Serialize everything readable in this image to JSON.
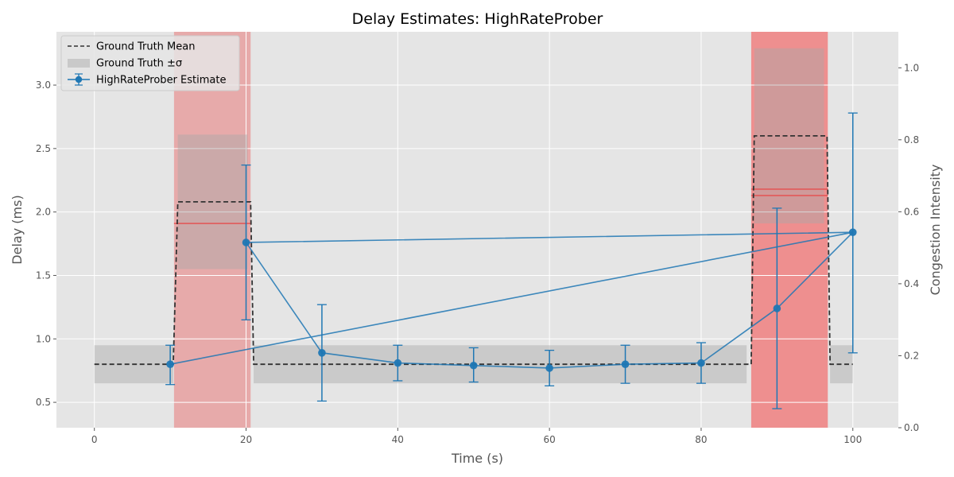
{
  "chart_data": {
    "type": "line",
    "title": "Delay Estimates: HighRateProber",
    "xlabel": "Time (s)",
    "ylabel": "Delay (ms)",
    "y2label": "Congestion Intensity",
    "xlim": [
      -5,
      106
    ],
    "ylim": [
      0.3,
      3.42
    ],
    "y2lim": [
      0.0,
      1.1
    ],
    "xticks": [
      0,
      20,
      40,
      60,
      80,
      100
    ],
    "yticks": [
      0.5,
      1.0,
      1.5,
      2.0,
      2.5,
      3.0
    ],
    "y2ticks": [
      0.0,
      0.2,
      0.4,
      0.6,
      0.8,
      1.0
    ],
    "grid": true,
    "legend_position": "top-left",
    "legend": [
      "Ground Truth Mean",
      "Ground Truth ±σ",
      "HighRateProber Estimate"
    ],
    "ground_truth_mean": {
      "x": [
        0,
        10.4,
        11,
        20,
        20.6,
        21,
        86,
        86.6,
        87,
        96,
        96.6,
        97,
        100
      ],
      "y": [
        0.8,
        0.8,
        2.08,
        2.08,
        2.08,
        0.8,
        0.8,
        0.8,
        2.6,
        2.6,
        2.6,
        0.8,
        0.8
      ]
    },
    "ground_truth_band": [
      {
        "x0": 0,
        "x1": 10.4,
        "lower": 0.65,
        "upper": 0.95
      },
      {
        "x0": 11,
        "x1": 20.2,
        "lower": 1.55,
        "upper": 2.61
      },
      {
        "x0": 21,
        "x1": 86,
        "lower": 0.65,
        "upper": 0.95
      },
      {
        "x0": 87,
        "x1": 96.2,
        "lower": 1.91,
        "upper": 3.29
      },
      {
        "x0": 97,
        "x1": 100,
        "lower": 0.65,
        "upper": 0.95
      }
    ],
    "congestion_regions": [
      {
        "x0": 10.5,
        "x1": 20.6,
        "intensity": 0.57,
        "color": "#e8a0a0"
      },
      {
        "x0": 86.6,
        "x1": 96.7,
        "intensity": 0.66,
        "color": "#f08080"
      }
    ],
    "congestion_lines": [
      {
        "x0": 10.5,
        "x1": 20.6,
        "y": 1.91
      },
      {
        "x0": 86.6,
        "x1": 96.7,
        "y": 2.18
      },
      {
        "x0": 86.6,
        "x1": 96.7,
        "y": 2.13
      }
    ],
    "series": [
      {
        "name": "HighRateProber Estimate",
        "color": "#1f77b4",
        "x": [
          10,
          20,
          30,
          40,
          50,
          60,
          70,
          80,
          90,
          100
        ],
        "y": [
          0.8,
          1.76,
          0.89,
          0.81,
          0.79,
          0.77,
          0.8,
          0.81,
          1.24,
          1.84
        ],
        "err_low": [
          0.64,
          1.15,
          0.51,
          0.67,
          0.66,
          0.63,
          0.65,
          0.65,
          0.45,
          0.89
        ],
        "err_high": [
          0.95,
          2.37,
          1.27,
          0.95,
          0.93,
          0.91,
          0.95,
          0.97,
          2.03,
          2.78
        ],
        "connection_order": [
          10,
          100,
          20,
          30,
          40,
          50,
          60,
          70,
          80,
          90,
          100
        ]
      }
    ]
  }
}
